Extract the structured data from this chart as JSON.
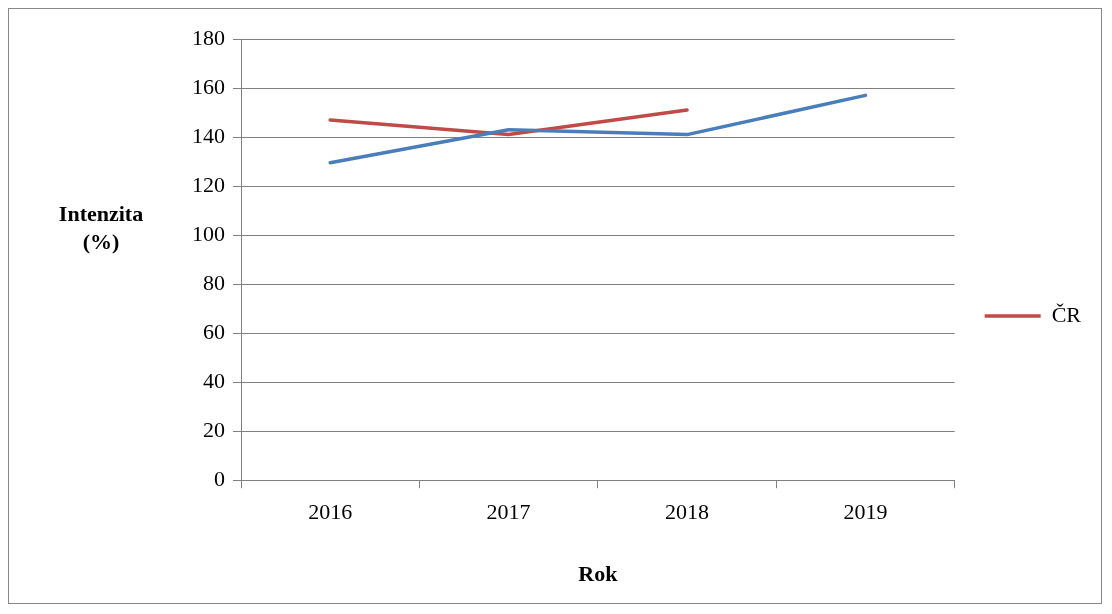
{
  "chart_data": {
    "type": "line",
    "xlabel": "Rok",
    "ylabel": "Intenzita (%)",
    "categories": [
      "2016",
      "2017",
      "2018",
      "2019"
    ],
    "series": [
      {
        "color": "#4a7ebb",
        "values": [
          129.5,
          143,
          141,
          157
        ]
      },
      {
        "name": "ČR",
        "color": "#be4b48",
        "values": [
          147,
          141,
          151,
          null
        ]
      }
    ],
    "ylim": [
      0,
      180
    ],
    "yticks": [
      0,
      20,
      40,
      60,
      80,
      100,
      120,
      140,
      160,
      180
    ],
    "grid": "y",
    "legend": "right",
    "marker": "none",
    "line_style": "solid"
  }
}
